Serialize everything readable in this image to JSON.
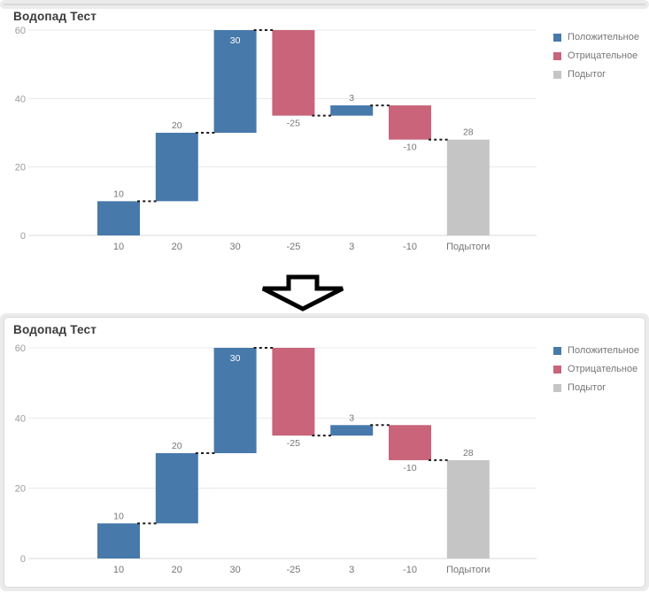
{
  "page": {
    "transition_arrow": "down-arrow",
    "background_color": "#ffffff",
    "card_background": "#ebebeb"
  },
  "chart_data": [
    {
      "type": "bar",
      "subtype": "waterfall",
      "title": "Водопад Тест",
      "categories": [
        "10",
        "20",
        "30",
        "-25",
        "3",
        "-10",
        "Подытоги"
      ],
      "values": [
        10,
        20,
        30,
        -25,
        3,
        -10,
        28
      ],
      "kinds": [
        "positive",
        "positive",
        "positive",
        "negative",
        "positive",
        "negative",
        "total"
      ],
      "running_start": [
        0,
        10,
        30,
        60,
        35,
        38,
        0
      ],
      "running_end": [
        10,
        30,
        60,
        35,
        38,
        28,
        28
      ],
      "point_labels": [
        "10",
        "20",
        "30",
        "-25",
        "3",
        "-10",
        "28"
      ],
      "label_placement": [
        "above",
        "above",
        "inside",
        "below",
        "above",
        "below",
        "above"
      ],
      "connector_levels": [
        10,
        30,
        60,
        35,
        38,
        28
      ],
      "connector_style": "dashed",
      "ylim": [
        0,
        60
      ],
      "yticks": [
        0,
        20,
        40,
        60
      ],
      "grid": true,
      "xlabel": "",
      "ylabel": "",
      "legend_position": "top-right",
      "legend": [
        {
          "label": "Положительное",
          "kind": "positive",
          "color": "#4779ab"
        },
        {
          "label": "Отрицательное",
          "kind": "negative",
          "color": "#c9647a"
        },
        {
          "label": "Подытог",
          "kind": "total",
          "color": "#c5c5c5"
        }
      ],
      "colors": {
        "positive": "#4779ab",
        "negative": "#c9647a",
        "total": "#c5c5c5"
      },
      "text_colors": {
        "title": "#3a3a3a",
        "ticks": "#9b9b9b",
        "labels": "#757575"
      }
    },
    {
      "type": "bar",
      "subtype": "waterfall",
      "title": "Водопад Тест",
      "categories": [
        "10",
        "20",
        "30",
        "-25",
        "3",
        "-10",
        "Подытоги"
      ],
      "values": [
        10,
        20,
        30,
        -25,
        3,
        -10,
        28
      ],
      "kinds": [
        "positive",
        "positive",
        "positive",
        "negative",
        "positive",
        "negative",
        "total"
      ],
      "running_start": [
        0,
        10,
        30,
        60,
        35,
        38,
        0
      ],
      "running_end": [
        10,
        30,
        60,
        35,
        38,
        28,
        28
      ],
      "point_labels": [
        "10",
        "20",
        "30",
        "-25",
        "3",
        "-10",
        "28"
      ],
      "label_placement": [
        "above",
        "above",
        "inside",
        "below",
        "above",
        "below",
        "above"
      ],
      "connector_levels": [
        10,
        30,
        60,
        35,
        38,
        28
      ],
      "connector_style": "dashed",
      "ylim": [
        0,
        60
      ],
      "yticks": [
        0,
        20,
        40,
        60
      ],
      "grid": true,
      "xlabel": "",
      "ylabel": "",
      "legend_position": "top-right",
      "legend": [
        {
          "label": "Положительное",
          "kind": "positive",
          "color": "#4779ab"
        },
        {
          "label": "Отрицательное",
          "kind": "negative",
          "color": "#c9647a"
        },
        {
          "label": "Подытог",
          "kind": "total",
          "color": "#c5c5c5"
        }
      ],
      "colors": {
        "positive": "#4779ab",
        "negative": "#c9647a",
        "total": "#c5c5c5"
      },
      "text_colors": {
        "title": "#3a3a3a",
        "ticks": "#9b9b9b",
        "labels": "#757575"
      }
    }
  ]
}
